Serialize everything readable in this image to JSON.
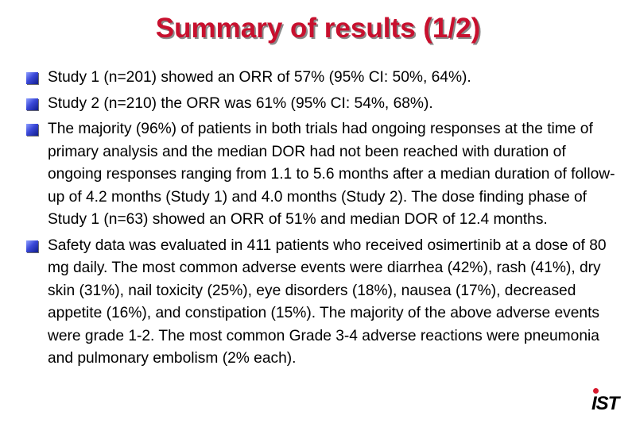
{
  "title": "Summary of results (1/2)",
  "bullets": [
    "Study 1 (n=201) showed an ORR of 57% (95% CI: 50%, 64%).",
    "Study 2 (n=210) the ORR was 61% (95% CI: 54%, 68%).",
    "The majority (96%) of patients in both trials had ongoing responses at the time of primary analysis and the median DOR had not been reached with duration of ongoing responses ranging from 1.1 to 5.6 months after a median duration of follow-up of 4.2 months (Study 1) and 4.0 months (Study 2). The dose finding phase of Study 1 (n=63) showed an ORR of 51% and median DOR of 12.4 months.",
    "Safety data was evaluated in 411 patients who received osimertinib at a dose of 80 mg daily. The most common adverse events were diarrhea (42%), rash (41%), dry skin (31%), nail toxicity (25%), eye disorders (18%), nausea (17%), decreased appetite (16%), and constipation (15%). The majority of the above adverse events were grade 1-2. The most common Grade 3-4 adverse reactions were pneumonia and pulmonary embolism (2% each)."
  ],
  "logo": {
    "text": "IST"
  },
  "colors": {
    "title": "#c8102e",
    "title_shadow": "#8a8a8a",
    "bullet_marker": "#2a36c8",
    "logo_dot": "#d7192d"
  },
  "icons": {
    "bullet": "blue-square-bullet-icon",
    "logo_dot": "red-dot-icon"
  }
}
